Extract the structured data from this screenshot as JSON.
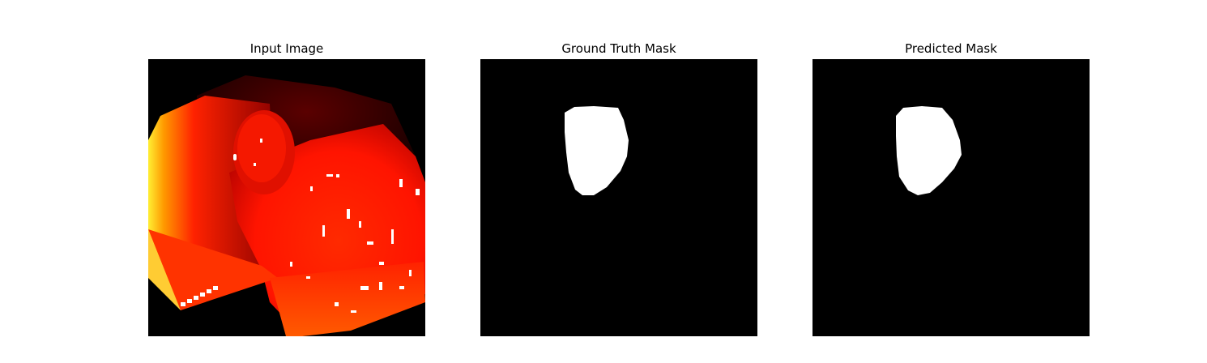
{
  "panels": [
    {
      "title": "Input Image"
    },
    {
      "title": "Ground Truth Mask"
    },
    {
      "title": "Predicted Mask"
    }
  ],
  "colors": {
    "background": "#000000",
    "mask": "#ffffff",
    "tissue_red": "#ff1a00",
    "tissue_orange": "#ff6a00",
    "highlight_yellow": "#ffee33"
  }
}
